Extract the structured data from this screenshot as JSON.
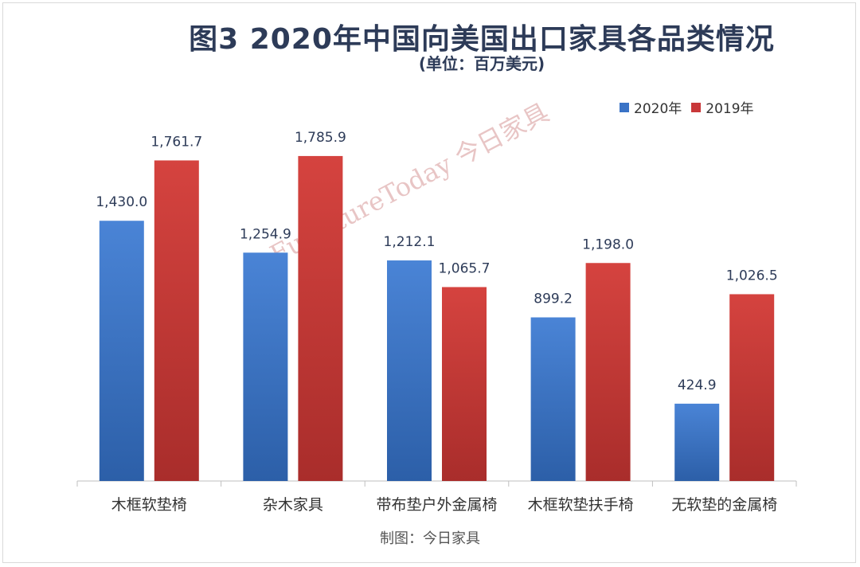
{
  "chart_data": {
    "type": "bar",
    "title": "图3 2020年中国向美国出口家具各品类情况",
    "subtitle": "(单位：百万美元)",
    "categories": [
      "木框软垫椅",
      "杂木家具",
      "带布垫户外金属椅",
      "木框软垫扶手椅",
      "无软垫的金属椅"
    ],
    "series": [
      {
        "name": "2020年",
        "color": "#3a73c6",
        "values": [
          1430.0,
          1254.9,
          1212.1,
          899.2,
          424.9
        ],
        "labels": [
          "1,430.0",
          "1,254.9",
          "1,212.1",
          "899.2",
          "424.9"
        ]
      },
      {
        "name": "2019年",
        "color": "#c9383a",
        "values": [
          1761.7,
          1785.9,
          1065.7,
          1198.0,
          1026.5
        ],
        "labels": [
          "1,761.7",
          "1,785.9",
          "1,065.7",
          "1,198.0",
          "1,026.5"
        ]
      }
    ],
    "ylim": [
      0,
      2000
    ],
    "grid": false,
    "legend": "top-right",
    "xlabel": "",
    "ylabel": ""
  },
  "footer": "制图：今日家具",
  "watermark": "FurnitureToday 今日家具"
}
